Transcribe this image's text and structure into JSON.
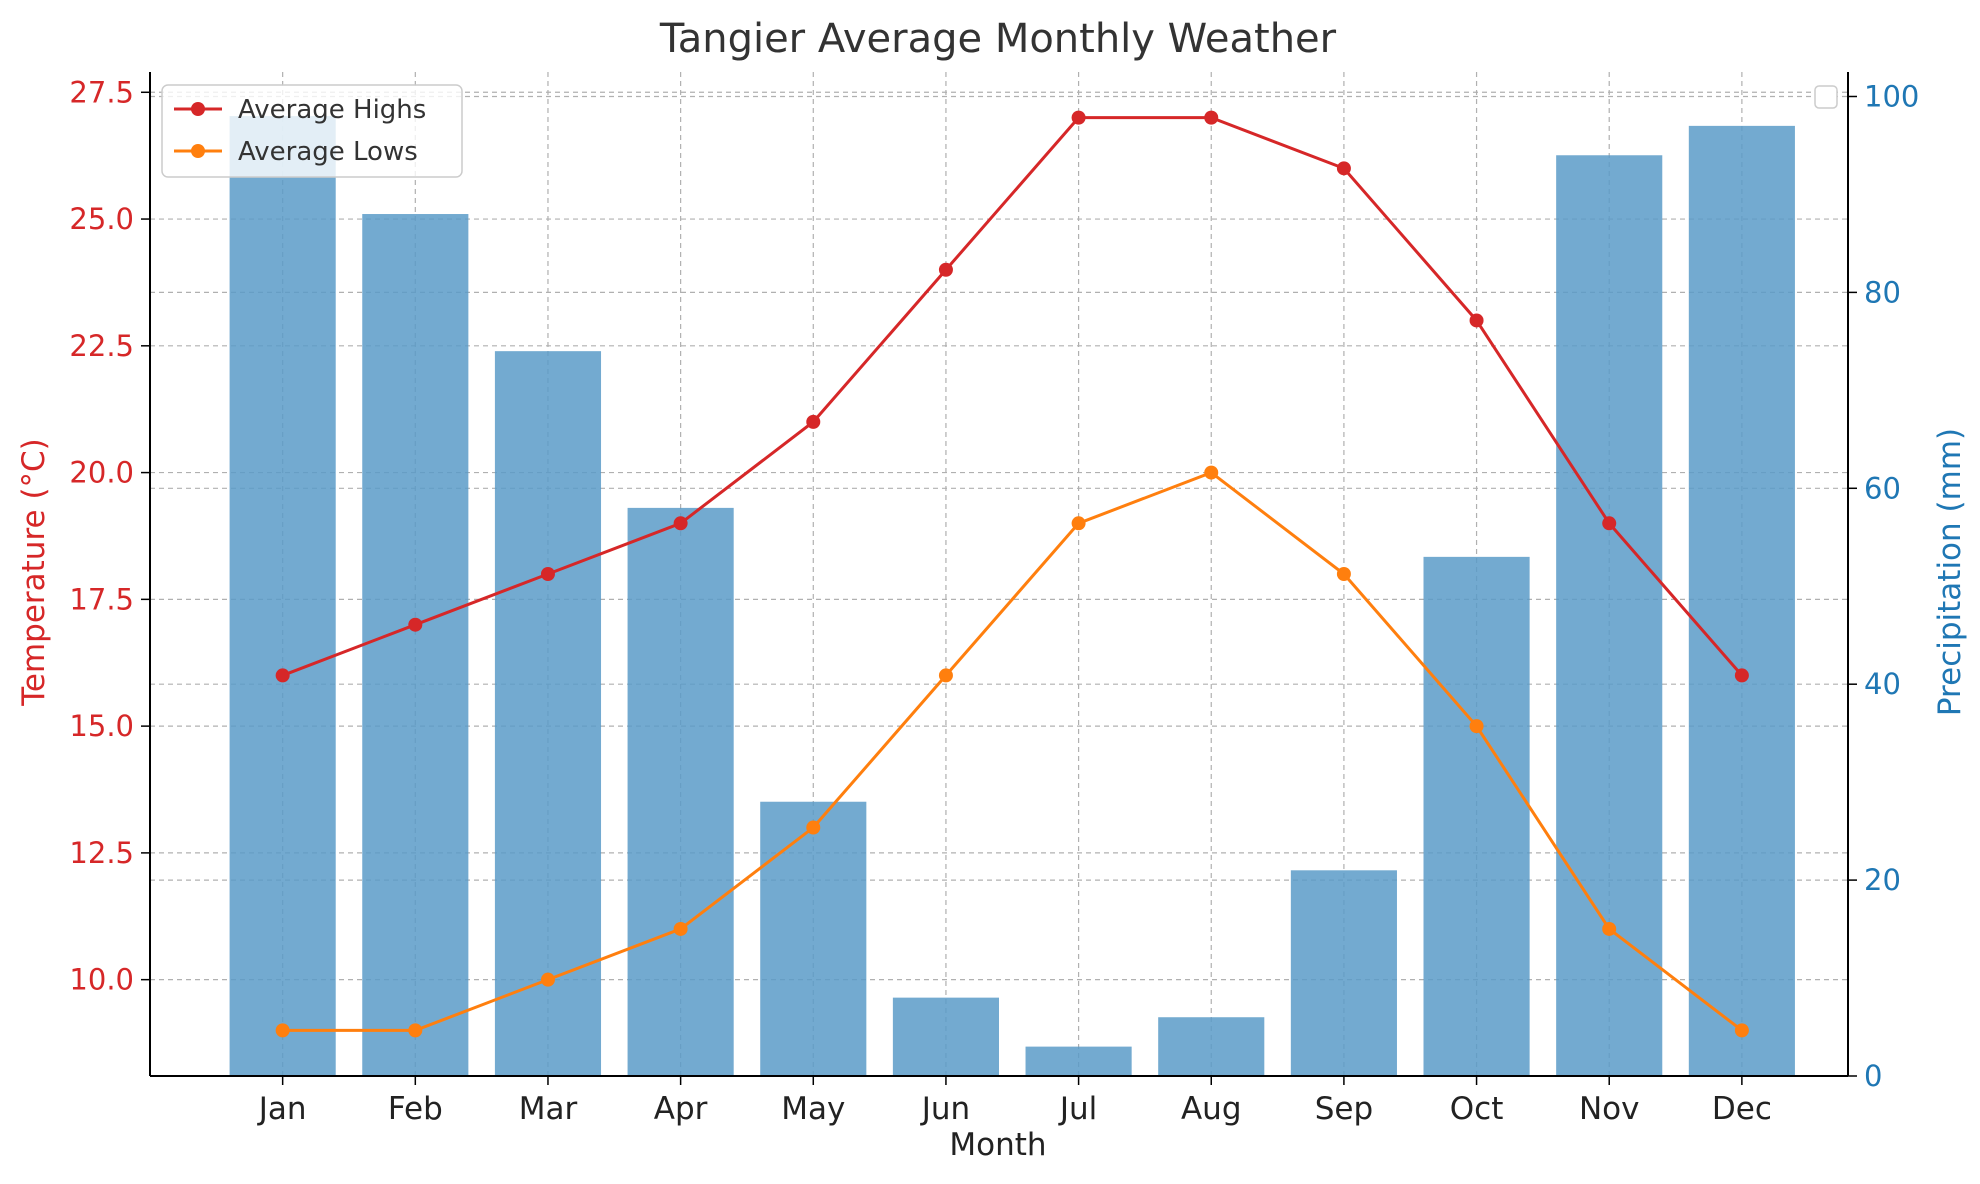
{
  "chart_data": {
    "type": "bar+line",
    "title": "Tangier Average Monthly Weather",
    "xlabel": "Month",
    "ylabel_left": "Temperature (°C)",
    "ylabel_right": "Precipitation (mm)",
    "categories": [
      "Jan",
      "Feb",
      "Mar",
      "Apr",
      "May",
      "Jun",
      "Jul",
      "Aug",
      "Sep",
      "Oct",
      "Nov",
      "Dec"
    ],
    "left_ticks": [
      "10.0",
      "12.5",
      "15.0",
      "17.5",
      "20.0",
      "22.5",
      "25.0",
      "27.5"
    ],
    "right_ticks": [
      "0",
      "20",
      "40",
      "60",
      "80",
      "100"
    ],
    "ylim_left": [
      8.1,
      27.9
    ],
    "ylim_right": [
      0,
      102.5
    ],
    "grid": true,
    "legend_position": "top-left",
    "bars": {
      "axis": "right",
      "values": [
        98,
        88,
        74,
        58,
        28,
        8,
        3,
        6,
        21,
        53,
        94,
        97
      ],
      "color": "#5b9bc8"
    },
    "series": [
      {
        "name": "Average Highs",
        "axis": "left",
        "color": "#d62728",
        "values": [
          16,
          17,
          18,
          19,
          21,
          24,
          27,
          27,
          26,
          23,
          19,
          16
        ]
      },
      {
        "name": "Average Lows",
        "axis": "left",
        "color": "#ff7f0e",
        "values": [
          9,
          9,
          10,
          11,
          13,
          16,
          19,
          20,
          18,
          15,
          11,
          9
        ]
      }
    ],
    "colors": {
      "left_axis": "#d62728",
      "right_axis": "#1f77b4",
      "text": "#333333",
      "grid": "#b0b0b0"
    }
  }
}
